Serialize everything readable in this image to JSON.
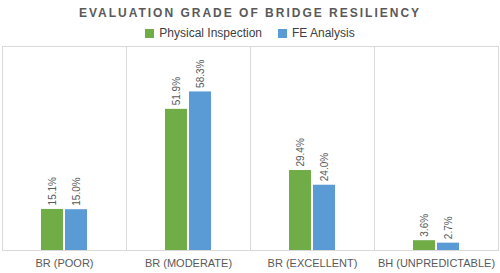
{
  "chart_data": {
    "type": "bar",
    "title": "EVALUATION GRADE OF BRIDGE RESILIENCY",
    "categories": [
      "BR (POOR)",
      "BR (MODERATE)",
      "BR (EXCELLENT)",
      "BH (UNPREDICTABLE)"
    ],
    "series": [
      {
        "name": "Physical Inspection",
        "color": "#70ad47",
        "values": [
          15.1,
          51.9,
          29.4,
          3.6
        ],
        "value_labels": [
          "15.1%",
          "51.9%",
          "29.4%",
          "3.6%"
        ]
      },
      {
        "name": "FE Analysis",
        "color": "#5b9bd5",
        "values": [
          15.0,
          58.3,
          24.0,
          2.7
        ],
        "value_labels": [
          "15.0%",
          "58.3%",
          "24.0%",
          "2.7%"
        ]
      }
    ],
    "ylim": [
      0,
      75
    ],
    "legend": "top",
    "data_labels": true,
    "tick_labels": "x",
    "grid": false
  }
}
